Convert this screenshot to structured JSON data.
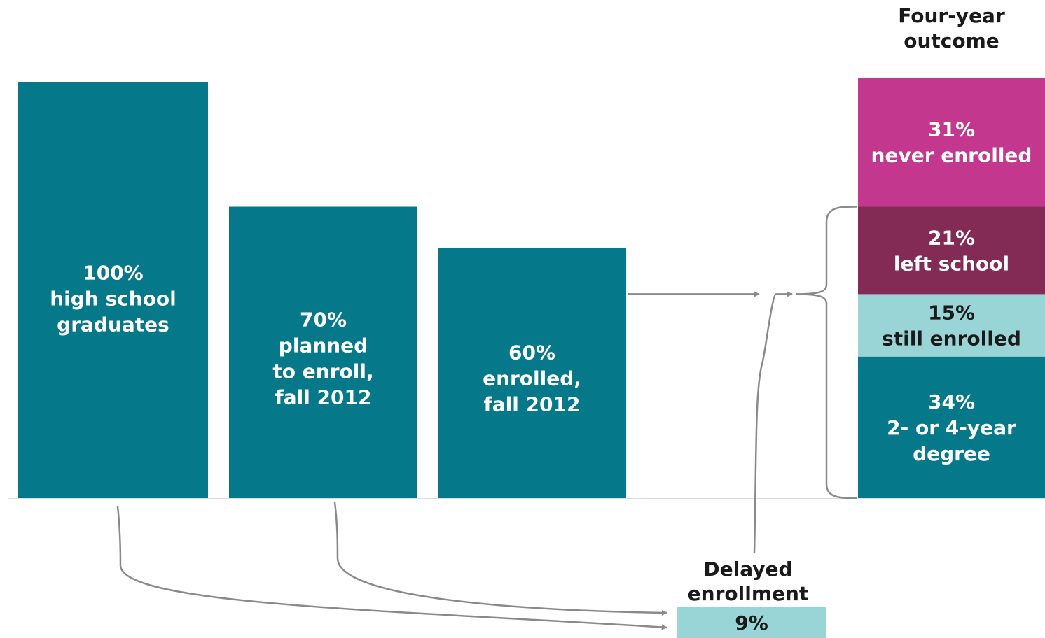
{
  "chart_data": {
    "type": "bar",
    "categories": [
      "high school graduates",
      "planned to enroll, fall 2012",
      "enrolled, fall 2012"
    ],
    "values": [
      100,
      70,
      60
    ],
    "ylim": [
      0,
      100
    ],
    "bar_color": "#05788a",
    "bars": [
      {
        "value_label": "100%",
        "lines": [
          "high school",
          "graduates"
        ]
      },
      {
        "value_label": "70%",
        "lines": [
          "planned",
          "to enroll,",
          "fall 2012"
        ]
      },
      {
        "value_label": "60%",
        "lines": [
          "enrolled,",
          "fall 2012"
        ]
      }
    ],
    "delayed": {
      "title_lines": [
        "Delayed",
        "enrollment"
      ],
      "value": 9,
      "value_label": "9%",
      "color": "#99d5d7"
    },
    "outcome": {
      "title_lines": [
        "Four-year",
        "outcome"
      ],
      "segments": [
        {
          "value": 34,
          "value_label": "34%",
          "lines": [
            "2- or 4-year",
            "degree"
          ],
          "color": "#05788a",
          "text_color": "#ffffff"
        },
        {
          "value": 15,
          "value_label": "15%",
          "lines": [
            "still enrolled"
          ],
          "color": "#99d5d7",
          "text_color": "#1a1a1a"
        },
        {
          "value": 21,
          "value_label": "21%",
          "lines": [
            "left school"
          ],
          "color": "#832a55",
          "text_color": "#ffffff"
        },
        {
          "value": 31,
          "value_label": "31%",
          "lines": [
            "never enrolled"
          ],
          "color": "#c3378e",
          "text_color": "#ffffff"
        }
      ]
    },
    "colors": {
      "connector": "#8a8a8a",
      "baseline": "#dcdcdc",
      "dark_text": "#1a1a1a"
    }
  }
}
